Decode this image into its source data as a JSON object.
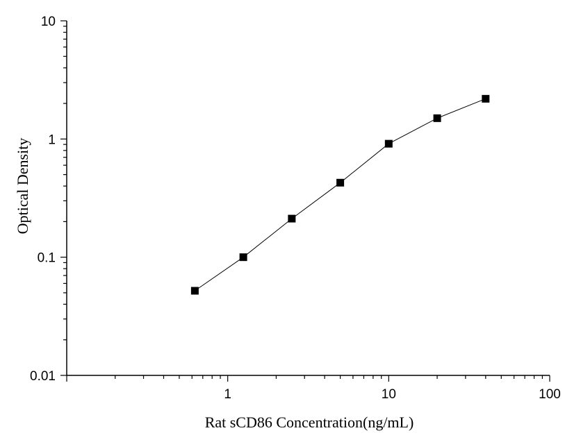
{
  "chart_data": {
    "type": "line",
    "xlabel": "Rat sCD86 Concentration(ng/mL)",
    "ylabel": "Optical Density",
    "xscale": "log",
    "yscale": "log",
    "xlim": [
      0.1,
      100
    ],
    "ylim": [
      0.01,
      10
    ],
    "x_tick_labels": [
      "1",
      "10",
      "100"
    ],
    "y_tick_labels": [
      "0.01",
      "0.1",
      "1",
      "10"
    ],
    "grid": false,
    "legend": "none",
    "marker": "square",
    "colors": {
      "line": "#000000",
      "marker": "#000000"
    },
    "series": [
      {
        "x": [
          0.625,
          1.25,
          2.5,
          5,
          10,
          20,
          40
        ],
        "y": [
          0.052,
          0.1,
          0.212,
          0.427,
          0.912,
          1.5,
          2.19
        ]
      }
    ]
  }
}
